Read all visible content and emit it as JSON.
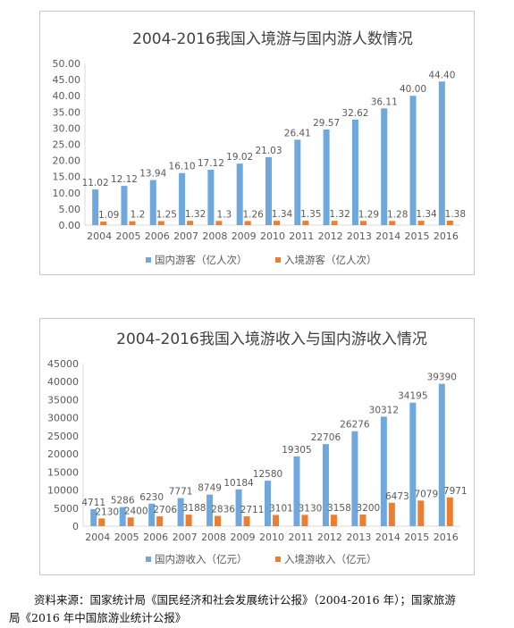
{
  "chart_data": [
    {
      "type": "bar",
      "title": "2004-2016我国入境游与国内游人数情况",
      "categories": [
        "2004",
        "2005",
        "2006",
        "2007",
        "2008",
        "2009",
        "2010",
        "2011",
        "2012",
        "2013",
        "2014",
        "2015",
        "2016"
      ],
      "series": [
        {
          "name": "国内游客（亿人次）",
          "color": "#6fa8dc",
          "values": [
            11.02,
            12.12,
            13.94,
            16.1,
            17.12,
            19.02,
            21.03,
            26.41,
            29.57,
            32.62,
            36.11,
            40.0,
            44.4
          ],
          "labels": [
            "11.02",
            "12.12",
            "13.94",
            "16.10",
            "17.12",
            "19.02",
            "21.03",
            "26.41",
            "29.57",
            "32.62",
            "36.11",
            "40.00",
            "44.40"
          ]
        },
        {
          "name": "入境游客（亿人次）",
          "color": "#ed7d31",
          "values": [
            1.09,
            1.2,
            1.25,
            1.32,
            1.3,
            1.26,
            1.34,
            1.35,
            1.32,
            1.29,
            1.28,
            1.34,
            1.38
          ],
          "labels": [
            "1.09",
            "1.2",
            "1.25",
            "1.32",
            "1.3",
            "1.26",
            "1.34",
            "1.35",
            "1.32",
            "1.29",
            "1.28",
            "1.34",
            "1.38"
          ]
        }
      ],
      "ylim": [
        0,
        50
      ],
      "yticks": [
        "0.00",
        "5.00",
        "10.00",
        "15.00",
        "20.00",
        "25.00",
        "30.00",
        "35.00",
        "40.00",
        "45.00",
        "50.00"
      ],
      "legend": "bottom",
      "grid": false
    },
    {
      "type": "bar",
      "title": "2004-2016我国入境游收入与国内游收入情况",
      "categories": [
        "2004",
        "2005",
        "2006",
        "2007",
        "2008",
        "2009",
        "2010",
        "2011",
        "2012",
        "2013",
        "2014",
        "2015",
        "2016"
      ],
      "series": [
        {
          "name": "国内游收入（亿元）",
          "color": "#6fa8dc",
          "values": [
            4711,
            5286,
            6230,
            7771,
            8749,
            10184,
            12580,
            19305,
            22706,
            26276,
            30312,
            34195,
            39390
          ],
          "labels": [
            "4711",
            "5286",
            "6230",
            "7771",
            "8749",
            "10184",
            "12580",
            "19305",
            "22706",
            "26276",
            "30312",
            "34195",
            "39390"
          ]
        },
        {
          "name": "入境游收入（亿元）",
          "color": "#ed7d31",
          "values": [
            2130,
            2400,
            2706,
            3188,
            2836,
            2711,
            3101,
            3130,
            3158,
            3200,
            6473,
            7079,
            7971
          ],
          "labels": [
            "2130",
            "2400",
            "2706",
            "3188",
            "2836",
            "2711",
            "3101",
            "3130",
            "3158",
            "3200",
            "6473",
            "7079",
            "7971"
          ]
        }
      ],
      "ylim": [
        0,
        45000
      ],
      "yticks": [
        "0",
        "5000",
        "10000",
        "15000",
        "20000",
        "25000",
        "30000",
        "35000",
        "40000",
        "45000"
      ],
      "legend": "bottom",
      "grid": false
    }
  ],
  "source_note": {
    "line1": "资料来源：国家统计局《国民经济和社会发展统计公报》（2004-2016 年）；国家旅游",
    "line2": "局《2016 年中国旅游业统计公报》"
  }
}
